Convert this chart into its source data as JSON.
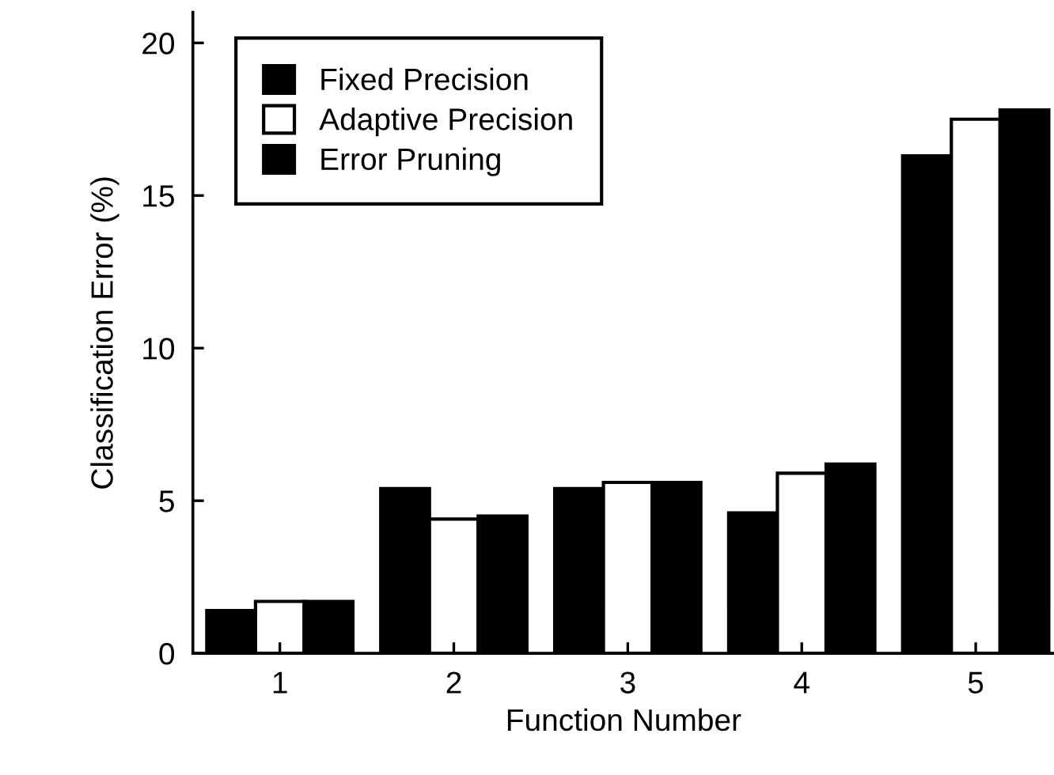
{
  "chart_data": {
    "type": "bar",
    "xlabel": "Function Number",
    "ylabel": "Classification Error (%)",
    "categories": [
      "1",
      "2",
      "3",
      "4",
      "5"
    ],
    "series": [
      {
        "name": "Fixed Precision",
        "color": "#000000",
        "values": [
          1.4,
          5.4,
          5.4,
          4.6,
          16.3
        ]
      },
      {
        "name": "Adaptive Precision",
        "color": "#ffffff",
        "values": [
          1.7,
          4.4,
          5.6,
          5.9,
          17.5
        ]
      },
      {
        "name": "Error Pruning",
        "color": "#000000",
        "values": [
          1.7,
          4.5,
          5.6,
          6.2,
          17.8
        ]
      }
    ],
    "ylim": [
      0,
      21
    ],
    "yticks": [
      0,
      5,
      10,
      15,
      20
    ],
    "grid": false,
    "legend": "top left"
  }
}
